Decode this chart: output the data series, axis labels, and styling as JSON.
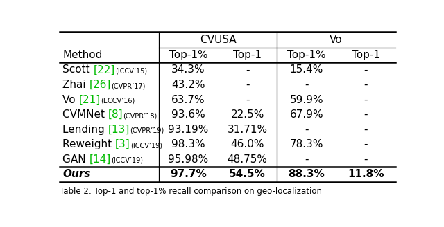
{
  "col_headers_sub": [
    "Method",
    "Top-1%",
    "Top-1",
    "Top-1%",
    "Top-1"
  ],
  "rows": [
    {
      "method_before": "Scott ",
      "method_ref": "[22]",
      "method_after": "",
      "method_sub": "(ICCV’15)",
      "cvusa_top1pct": "34.3%",
      "cvusa_top1": "-",
      "vo_top1pct": "15.4%",
      "vo_top1": "-",
      "bold": false
    },
    {
      "method_before": "Zhai ",
      "method_ref": "[26]",
      "method_after": "",
      "method_sub": "(CVPR’17)",
      "cvusa_top1pct": "43.2%",
      "cvusa_top1": "-",
      "vo_top1pct": "-",
      "vo_top1": "-",
      "bold": false
    },
    {
      "method_before": "Vo ",
      "method_ref": "[21]",
      "method_after": "",
      "method_sub": "(ECCV’16)",
      "cvusa_top1pct": "63.7%",
      "cvusa_top1": "-",
      "vo_top1pct": "59.9%",
      "vo_top1": "-",
      "bold": false
    },
    {
      "method_before": "CVMNet ",
      "method_ref": "[8]",
      "method_after": "",
      "method_sub": "(CVPR’18)",
      "cvusa_top1pct": "93.6%",
      "cvusa_top1": "22.5%",
      "vo_top1pct": "67.9%",
      "vo_top1": "-",
      "bold": false
    },
    {
      "method_before": "Lending ",
      "method_ref": "[13]",
      "method_after": "",
      "method_sub": "(CVPR’19)",
      "cvusa_top1pct": "93.19%",
      "cvusa_top1": "31.71%",
      "vo_top1pct": "-",
      "vo_top1": "-",
      "bold": false
    },
    {
      "method_before": "Reweight ",
      "method_ref": "[3]",
      "method_after": "",
      "method_sub": "(ICCV’19)",
      "cvusa_top1pct": "98.3%",
      "cvusa_top1": "46.0%",
      "vo_top1pct": "78.3%",
      "vo_top1": "-",
      "bold": false
    },
    {
      "method_before": "GAN ",
      "method_ref": "[14]",
      "method_after": "",
      "method_sub": "(ICCV’19)",
      "cvusa_top1pct": "95.98%",
      "cvusa_top1": "48.75%",
      "vo_top1pct": "-",
      "vo_top1": "-",
      "bold": false
    },
    {
      "method_before": "Ours",
      "method_ref": "",
      "method_after": "",
      "method_sub": "",
      "cvusa_top1pct": "97.7%",
      "cvusa_top1": "54.5%",
      "vo_top1pct": "88.3%",
      "vo_top1": "11.8%",
      "bold": true
    }
  ],
  "caption": "Table 2: Top-1 and top-1% recall comparison on geo-localization",
  "green_color": "#00bb00",
  "bg_color": "#ffffff",
  "text_color": "#000000"
}
